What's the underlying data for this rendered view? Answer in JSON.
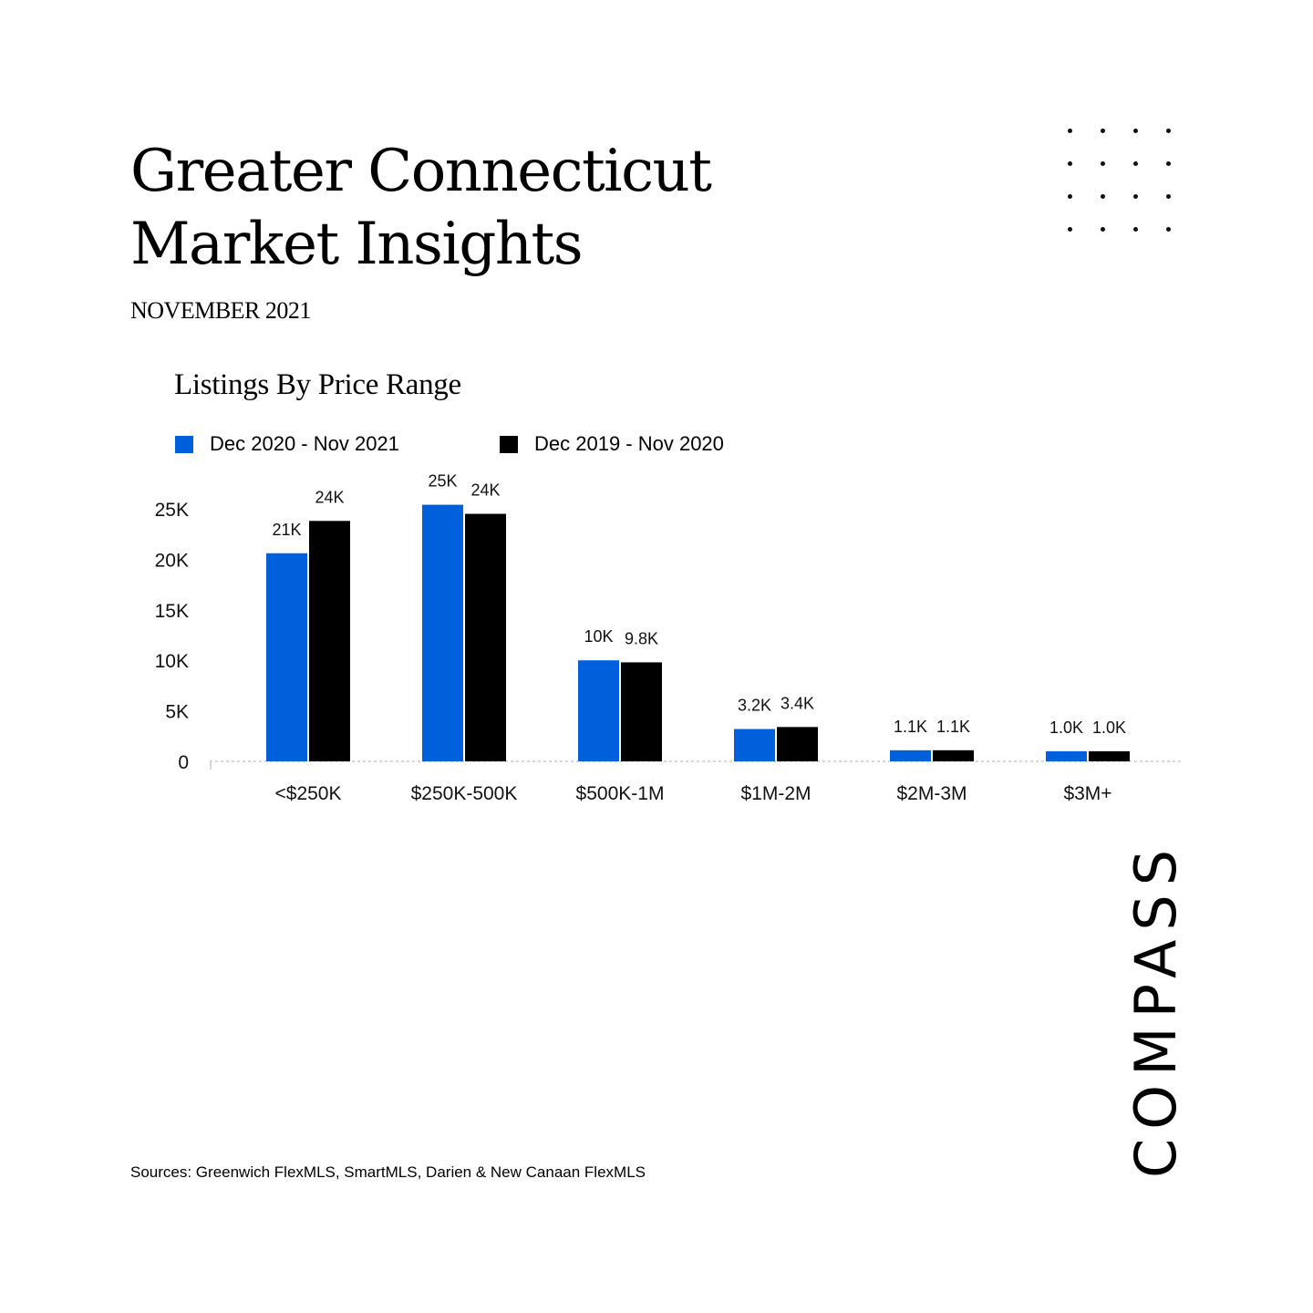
{
  "header": {
    "title_line1": "Greater Connecticut",
    "title_line2": "Market Insights",
    "subtitle": "NOVEMBER 2021"
  },
  "chart_data": {
    "type": "bar",
    "title": "Listings By Price Range",
    "categories": [
      "<$250K",
      "$250K-500K",
      "$500K-1M",
      "$1M-2M",
      "$2M-3M",
      "$3M+"
    ],
    "series": [
      {
        "name": "Dec 2020 - Nov 2021",
        "color": "#0060DC",
        "values": [
          20600,
          25400,
          10000,
          3200,
          1100,
          1000
        ],
        "labels": [
          "21K",
          "25K",
          "10K",
          "3.2K",
          "1.1K",
          "1.0K"
        ]
      },
      {
        "name": "Dec 2019 - Nov 2020",
        "color": "#000000",
        "values": [
          23800,
          24500,
          9800,
          3400,
          1100,
          1000
        ],
        "labels": [
          "24K",
          "24K",
          "9.8K",
          "3.4K",
          "1.1K",
          "1.0K"
        ]
      }
    ],
    "y_ticks": [
      {
        "value": 0,
        "label": "0"
      },
      {
        "value": 5000,
        "label": "5K"
      },
      {
        "value": 10000,
        "label": "10K"
      },
      {
        "value": 15000,
        "label": "15K"
      },
      {
        "value": 20000,
        "label": "20K"
      },
      {
        "value": 25000,
        "label": "25K"
      }
    ],
    "ylim": [
      0,
      25000
    ],
    "legend_position": "top-left",
    "grid": false
  },
  "footer": {
    "sources": "Sources: Greenwich FlexMLS, SmartMLS, Darien & New Canaan FlexMLS"
  },
  "brand": {
    "logo_text": "COMPASS"
  }
}
